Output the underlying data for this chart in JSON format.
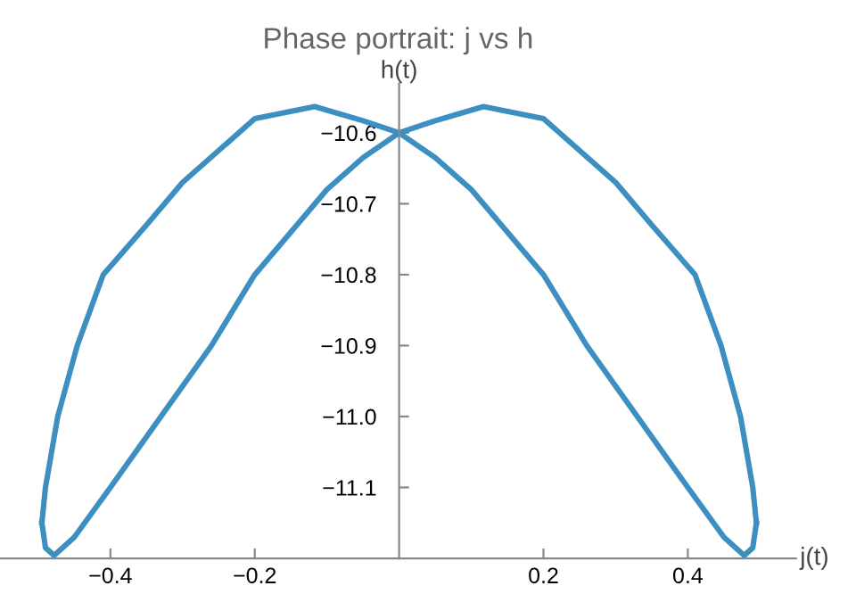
{
  "chart_data": {
    "type": "line",
    "title": "Phase portrait: j vs h",
    "xlabel": "j(t)",
    "ylabel": "h(t)",
    "series": [
      {
        "color": "#3d8fc1",
        "x": [
          0.495,
          0.49,
          0.473,
          0.446,
          0.41,
          0.35,
          0.3,
          0.2,
          0.117,
          0.05,
          0,
          -0.05,
          -0.1,
          -0.15,
          -0.2,
          -0.26,
          -0.33,
          -0.4,
          -0.45,
          -0.478,
          -0.49,
          -0.495
        ],
        "values": [
          -11.15,
          -11.1,
          -11.0,
          -10.9,
          -10.8,
          -10.73,
          -10.67,
          -10.58,
          -10.563,
          -10.583,
          -10.6,
          -10.635,
          -10.68,
          -10.74,
          -10.8,
          -10.9,
          -11.0,
          -11.1,
          -11.17,
          -11.196,
          -11.185,
          -11.15
        ]
      },
      {
        "color": "#3d8fc1",
        "x": [
          -0.495,
          -0.49,
          -0.473,
          -0.446,
          -0.41,
          -0.35,
          -0.3,
          -0.2,
          -0.117,
          -0.05,
          0,
          0.05,
          0.1,
          0.15,
          0.2,
          0.26,
          0.33,
          0.4,
          0.45,
          0.478,
          0.49,
          0.495
        ],
        "values": [
          -11.15,
          -11.1,
          -11.0,
          -10.9,
          -10.8,
          -10.73,
          -10.67,
          -10.58,
          -10.563,
          -10.583,
          -10.6,
          -10.635,
          -10.68,
          -10.74,
          -10.8,
          -10.9,
          -11.0,
          -11.1,
          -11.17,
          -11.196,
          -11.185,
          -11.15
        ]
      }
    ],
    "xlim": [
      -0.553,
      0.55
    ],
    "ylim": [
      -11.2,
      -10.53
    ],
    "xticks": [
      {
        "value": -0.4,
        "label": "−0.4"
      },
      {
        "value": -0.2,
        "label": "−0.2"
      },
      {
        "value": 0.2,
        "label": "0.2"
      },
      {
        "value": 0.4,
        "label": "0.4"
      }
    ],
    "yticks": [
      {
        "value": -11.1,
        "label": "−11.1"
      },
      {
        "value": -11.0,
        "label": "−11.0"
      },
      {
        "value": -10.9,
        "label": "−10.9"
      },
      {
        "value": -10.8,
        "label": "−10.8"
      },
      {
        "value": -10.7,
        "label": "−10.7"
      },
      {
        "value": -10.6,
        "label": "−10.6"
      }
    ],
    "grid": false,
    "legend": false,
    "marker": "none",
    "line_style": "solid"
  }
}
